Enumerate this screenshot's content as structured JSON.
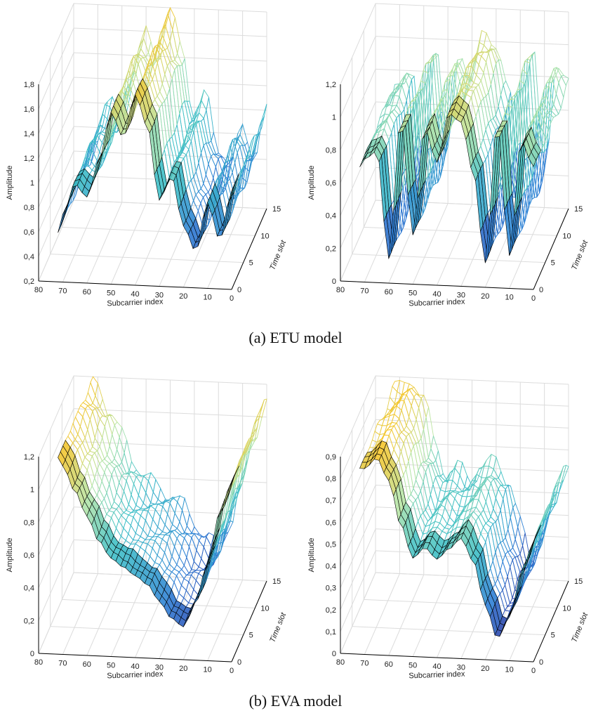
{
  "captions": {
    "a": "(a) ETU model",
    "b": "(b) EVA model"
  },
  "axis_labels": {
    "z": "Amplitude",
    "x": "Subcarrier index",
    "y": "Time slot"
  },
  "colors": {
    "low": "#2b1b8f",
    "mid1": "#2f7fd6",
    "mid2": "#3fc0c8",
    "mid3": "#b8e6a8",
    "high": "#f7c52a",
    "edge": "#000000",
    "grid": "#dcdcdc"
  },
  "chart_data": [
    {
      "type": "surface3d",
      "title": "",
      "xlabel": "Subcarrier index",
      "ylabel": "Time slot",
      "zlabel": "Amplitude",
      "x_range": [
        0,
        80
      ],
      "y_range": [
        0,
        15
      ],
      "z_range": [
        0.2,
        1.8
      ],
      "x_ticks": [
        0,
        10,
        20,
        30,
        40,
        50,
        60,
        70,
        80
      ],
      "y_ticks": [
        0,
        5,
        10,
        15
      ],
      "z_ticks": [
        0.2,
        0.4,
        0.6,
        0.8,
        1,
        1.2,
        1.4,
        1.6,
        1.8
      ],
      "z_tick_labels": [
        "0,2",
        "0,4",
        "0,6",
        "0,8",
        "1",
        "1,2",
        "1,4",
        "1,6",
        "1,8"
      ],
      "profile_x": [
        0,
        5,
        10,
        15,
        20,
        25,
        30,
        35,
        40,
        45,
        50,
        55,
        60,
        65,
        70,
        72
      ],
      "profile_z": [
        1.0,
        0.6,
        0.9,
        0.5,
        0.7,
        1.1,
        0.9,
        1.5,
        1.75,
        1.4,
        1.6,
        1.2,
        0.9,
        1.0,
        0.75,
        0.6
      ],
      "grid": true
    },
    {
      "type": "surface3d",
      "title": "",
      "xlabel": "Subcarrier index",
      "ylabel": "Time slot",
      "zlabel": "Amplitude",
      "x_range": [
        0,
        80
      ],
      "y_range": [
        0,
        15
      ],
      "z_range": [
        0,
        1.2
      ],
      "x_ticks": [
        0,
        10,
        20,
        30,
        40,
        50,
        60,
        70,
        80
      ],
      "y_ticks": [
        0,
        5,
        10,
        15
      ],
      "z_ticks": [
        0,
        0.2,
        0.4,
        0.6,
        0.8,
        1,
        1.2
      ],
      "z_tick_labels": [
        "0",
        "0,2",
        "0,4",
        "0,6",
        "0,8",
        "1",
        "1,2"
      ],
      "profile_x": [
        0,
        5,
        10,
        15,
        20,
        25,
        30,
        35,
        40,
        45,
        50,
        55,
        60,
        65,
        70,
        72
      ],
      "profile_z": [
        0.75,
        0.9,
        0.2,
        1.0,
        0.15,
        0.7,
        1.0,
        1.05,
        0.75,
        0.95,
        0.3,
        1.0,
        0.15,
        0.8,
        0.75,
        0.7
      ],
      "grid": true
    },
    {
      "type": "surface3d",
      "title": "",
      "xlabel": "Subcarrier index",
      "ylabel": "Time slot",
      "zlabel": "Amplitude",
      "x_range": [
        0,
        80
      ],
      "y_range": [
        0,
        15
      ],
      "z_range": [
        0,
        1.2
      ],
      "x_ticks": [
        0,
        10,
        20,
        30,
        40,
        50,
        60,
        70,
        80
      ],
      "y_ticks": [
        0,
        5,
        10,
        15
      ],
      "z_ticks": [
        0,
        0.2,
        0.4,
        0.6,
        0.8,
        1,
        1.2
      ],
      "z_tick_labels": [
        "0",
        "0,2",
        "0,4",
        "0,6",
        "0,8",
        "1",
        "1,2"
      ],
      "profile_x": [
        0,
        5,
        10,
        15,
        20,
        25,
        30,
        35,
        40,
        45,
        50,
        55,
        60,
        65,
        70,
        72
      ],
      "profile_z": [
        1.1,
        0.9,
        0.6,
        0.35,
        0.2,
        0.25,
        0.35,
        0.45,
        0.5,
        0.55,
        0.6,
        0.7,
        0.85,
        1.0,
        1.15,
        1.2
      ],
      "grid": true
    },
    {
      "type": "surface3d",
      "title": "",
      "xlabel": "Subcarrier index",
      "ylabel": "Time slot",
      "zlabel": "Amplitude",
      "x_range": [
        0,
        80
      ],
      "y_range": [
        0,
        15
      ],
      "z_range": [
        0,
        0.9
      ],
      "x_ticks": [
        0,
        10,
        20,
        30,
        40,
        50,
        60,
        70,
        80
      ],
      "y_ticks": [
        0,
        5,
        10,
        15
      ],
      "z_ticks": [
        0,
        0.1,
        0.2,
        0.3,
        0.4,
        0.5,
        0.6,
        0.7,
        0.8,
        0.9
      ],
      "z_tick_labels": [
        "0",
        "0,1",
        "0,2",
        "0,3",
        "0,4",
        "0,5",
        "0,6",
        "0,7",
        "0,8",
        "0,9"
      ],
      "profile_x": [
        0,
        5,
        10,
        15,
        20,
        25,
        30,
        35,
        40,
        45,
        50,
        55,
        60,
        65,
        70,
        72
      ],
      "profile_z": [
        0.55,
        0.4,
        0.2,
        0.1,
        0.25,
        0.45,
        0.55,
        0.5,
        0.45,
        0.5,
        0.45,
        0.6,
        0.8,
        0.9,
        0.85,
        0.85
      ],
      "grid": true
    }
  ]
}
